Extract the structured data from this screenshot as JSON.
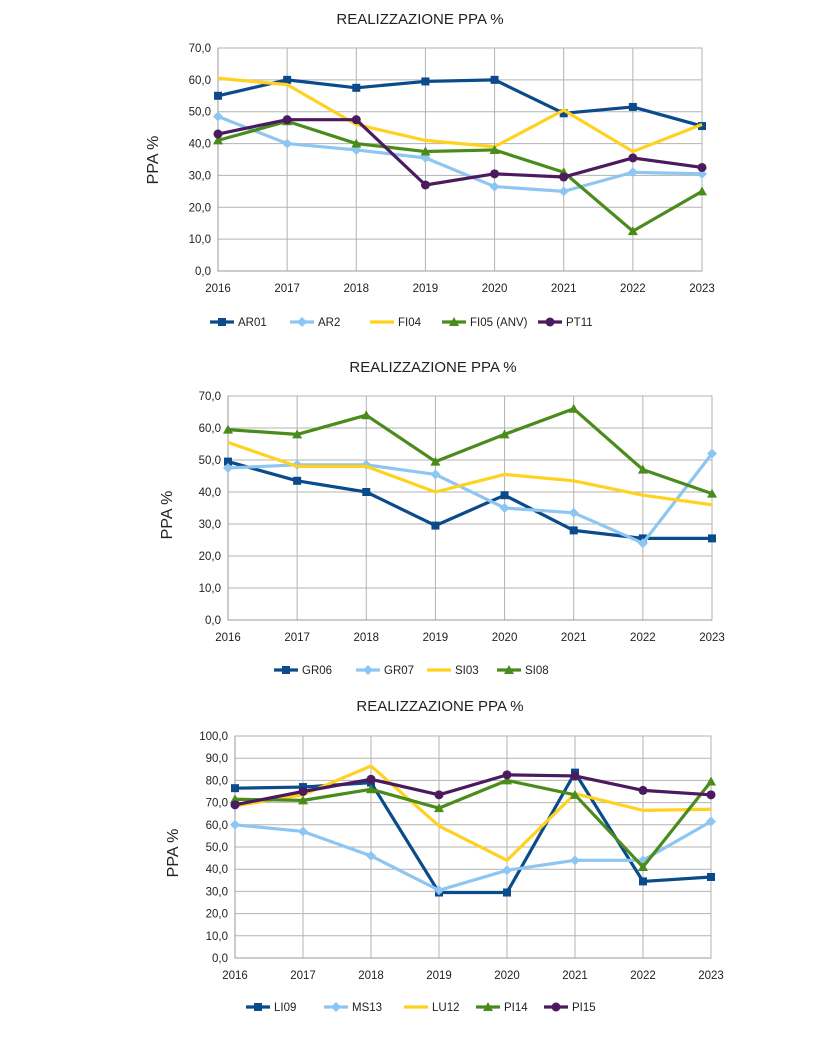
{
  "chart_data": [
    {
      "type": "line",
      "title": "REALIZZAZIONE PPA %",
      "xlabel": "",
      "ylabel": "PPA %",
      "ylim": [
        0,
        70
      ],
      "ytick_step": 10,
      "ytick_labels": [
        "0,0",
        "10,0",
        "20,0",
        "30,0",
        "40,0",
        "50,0",
        "60,0",
        "70,0"
      ],
      "grid": true,
      "legend": "bottom",
      "categories": [
        "2016",
        "2017",
        "2018",
        "2019",
        "2020",
        "2021",
        "2022",
        "2023"
      ],
      "series": [
        {
          "name": "AR01",
          "color": "#0b4a8b",
          "marker": "square",
          "values": [
            55,
            60,
            57.5,
            59.5,
            60,
            49.5,
            51.5,
            45.5
          ]
        },
        {
          "name": "AR2",
          "color": "#8dc6f2",
          "marker": "diamond",
          "values": [
            48.5,
            40,
            38,
            35.5,
            26.5,
            25,
            31,
            30.5
          ]
        },
        {
          "name": "FI04",
          "color": "#ffd21f",
          "marker": "none",
          "values": [
            60.5,
            58.5,
            46,
            41,
            39,
            50.5,
            37.5,
            46
          ]
        },
        {
          "name": "FI05 (ANV)",
          "color": "#4a8c1c",
          "marker": "triangle",
          "values": [
            41,
            47,
            40,
            37.5,
            38,
            31,
            12.5,
            25
          ]
        },
        {
          "name": "PT11",
          "color": "#4b1a5f",
          "marker": "circle",
          "values": [
            43,
            47.5,
            47.5,
            27,
            30.5,
            29.5,
            35.5,
            32.5
          ]
        }
      ]
    },
    {
      "type": "line",
      "title": "REALIZZAZIONE PPA %",
      "xlabel": "",
      "ylabel": "PPA %",
      "ylim": [
        0,
        70
      ],
      "ytick_step": 10,
      "ytick_labels": [
        "0,0",
        "10,0",
        "20,0",
        "30,0",
        "40,0",
        "50,0",
        "60,0",
        "70,0"
      ],
      "grid": true,
      "legend": "bottom",
      "categories": [
        "2016",
        "2017",
        "2018",
        "2019",
        "2020",
        "2021",
        "2022",
        "2023"
      ],
      "series": [
        {
          "name": "GR06",
          "color": "#0b4a8b",
          "marker": "square",
          "values": [
            49.5,
            43.5,
            40,
            29.5,
            39,
            28,
            25.5,
            25.5
          ]
        },
        {
          "name": "GR07",
          "color": "#8dc6f2",
          "marker": "diamond",
          "values": [
            47.5,
            48.5,
            48.5,
            45.5,
            35,
            33.5,
            24,
            52
          ]
        },
        {
          "name": "SI03",
          "color": "#ffd21f",
          "marker": "none",
          "values": [
            55.5,
            48,
            48,
            40,
            45.5,
            43.5,
            39,
            36
          ]
        },
        {
          "name": "SI08",
          "color": "#4a8c1c",
          "marker": "triangle",
          "values": [
            59.5,
            58,
            64,
            49.5,
            58,
            66,
            47,
            39.5
          ]
        }
      ]
    },
    {
      "type": "line",
      "title": "REALIZZAZIONE PPA %",
      "xlabel": "",
      "ylabel": "PPA %",
      "ylim": [
        0,
        100
      ],
      "ytick_step": 10,
      "ytick_labels": [
        "0,0",
        "10,0",
        "20,0",
        "30,0",
        "40,0",
        "50,0",
        "60,0",
        "70,0",
        "80,0",
        "90,0",
        "100,0"
      ],
      "grid": true,
      "legend": "bottom",
      "categories": [
        "2016",
        "2017",
        "2018",
        "2019",
        "2020",
        "2021",
        "2022",
        "2023"
      ],
      "series": [
        {
          "name": "LI09",
          "color": "#0b4a8b",
          "marker": "square",
          "values": [
            76.5,
            77,
            79,
            29.5,
            29.5,
            83.5,
            34.5,
            36.5
          ]
        },
        {
          "name": "MS13",
          "color": "#8dc6f2",
          "marker": "diamond",
          "values": [
            60,
            57,
            46,
            30.5,
            39.5,
            44,
            44,
            61.5
          ]
        },
        {
          "name": "LU12",
          "color": "#ffd21f",
          "marker": "none",
          "values": [
            68.5,
            73.5,
            86.5,
            59.5,
            44,
            74,
            66.5,
            67
          ]
        },
        {
          "name": "PI14",
          "color": "#4a8c1c",
          "marker": "triangle",
          "values": [
            71.5,
            71,
            76,
            67.5,
            80,
            73.5,
            41,
            79.5
          ]
        },
        {
          "name": "PI15",
          "color": "#4b1a5f",
          "marker": "circle",
          "values": [
            69,
            75,
            80.5,
            73.5,
            82.5,
            82,
            75.5,
            73.5
          ]
        }
      ]
    }
  ]
}
